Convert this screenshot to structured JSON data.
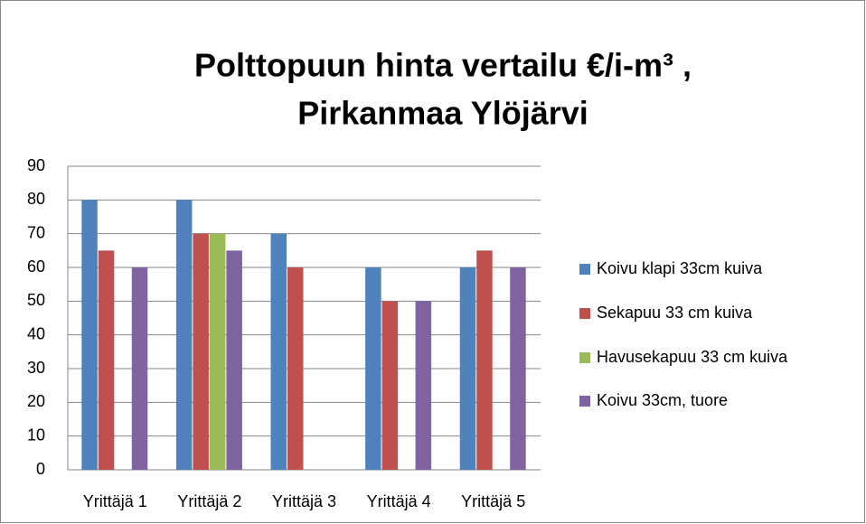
{
  "chart_data": {
    "type": "bar",
    "title": [
      "Polttopuun hinta vertailu €/i-m³ ,",
      "Pirkanmaa Ylöjärvi"
    ],
    "categories": [
      "Yrittäjä 1",
      "Yrittäjä 2",
      "Yrittäjä 3",
      "Yrittäjä 4",
      "Yrittäjä 5"
    ],
    "series": [
      {
        "name": "Koivu klapi 33cm kuiva",
        "color": "#4f81bd",
        "values": [
          80,
          80,
          70,
          60,
          60
        ]
      },
      {
        "name": "Sekapuu 33 cm kuiva",
        "color": "#c0504d",
        "values": [
          65,
          70,
          60,
          50,
          65
        ]
      },
      {
        "name": "Havusekapuu 33 cm kuiva",
        "color": "#9bbb59",
        "values": [
          null,
          70,
          null,
          null,
          null
        ]
      },
      {
        "name": "Koivu 33cm, tuore",
        "color": "#8064a2",
        "values": [
          60,
          65,
          null,
          50,
          60
        ]
      }
    ],
    "ylim": [
      0,
      90
    ],
    "yticks": [
      0,
      10,
      20,
      30,
      40,
      50,
      60,
      70,
      80,
      90
    ],
    "grid": true,
    "legend": "right"
  }
}
